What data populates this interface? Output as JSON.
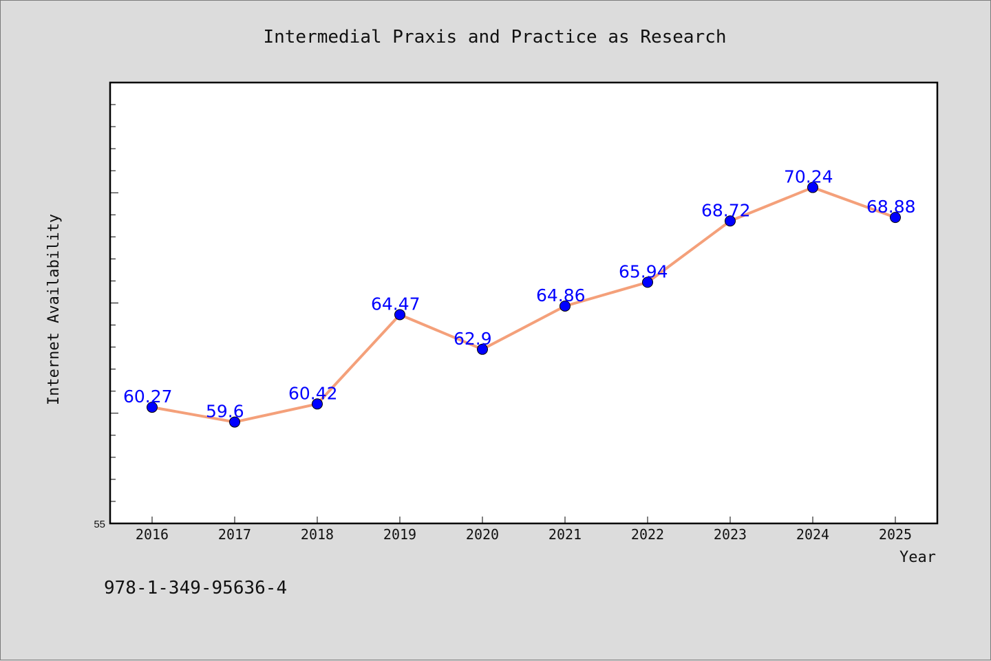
{
  "chart_data": {
    "type": "line",
    "title": "Intermedial Praxis and Practice as Research",
    "xlabel": "Year",
    "ylabel": "Internet Availability",
    "categories": [
      "2016",
      "2017",
      "2018",
      "2019",
      "2020",
      "2021",
      "2022",
      "2023",
      "2024",
      "2025"
    ],
    "series": [
      {
        "values": [
          60.27,
          59.6,
          60.42,
          64.47,
          62.9,
          64.86,
          65.94,
          68.72,
          70.24,
          68.88
        ],
        "labels": [
          "60.27",
          "59.6",
          "60.42",
          "64.47",
          "62.9",
          "64.86",
          "65.94",
          "68.72",
          "70.24",
          "68.88"
        ]
      }
    ],
    "ylim": [
      55,
      75
    ],
    "y_tick_labels": [
      "55"
    ],
    "grid": false,
    "colors": {
      "line": "#f4a07a",
      "marker": "#0000ff",
      "data_label": "#0000ff",
      "plot_background": "#ffffff",
      "page_background": "#dcdcdc"
    }
  },
  "footer": {
    "isbn": "978-1-349-95636-4"
  }
}
